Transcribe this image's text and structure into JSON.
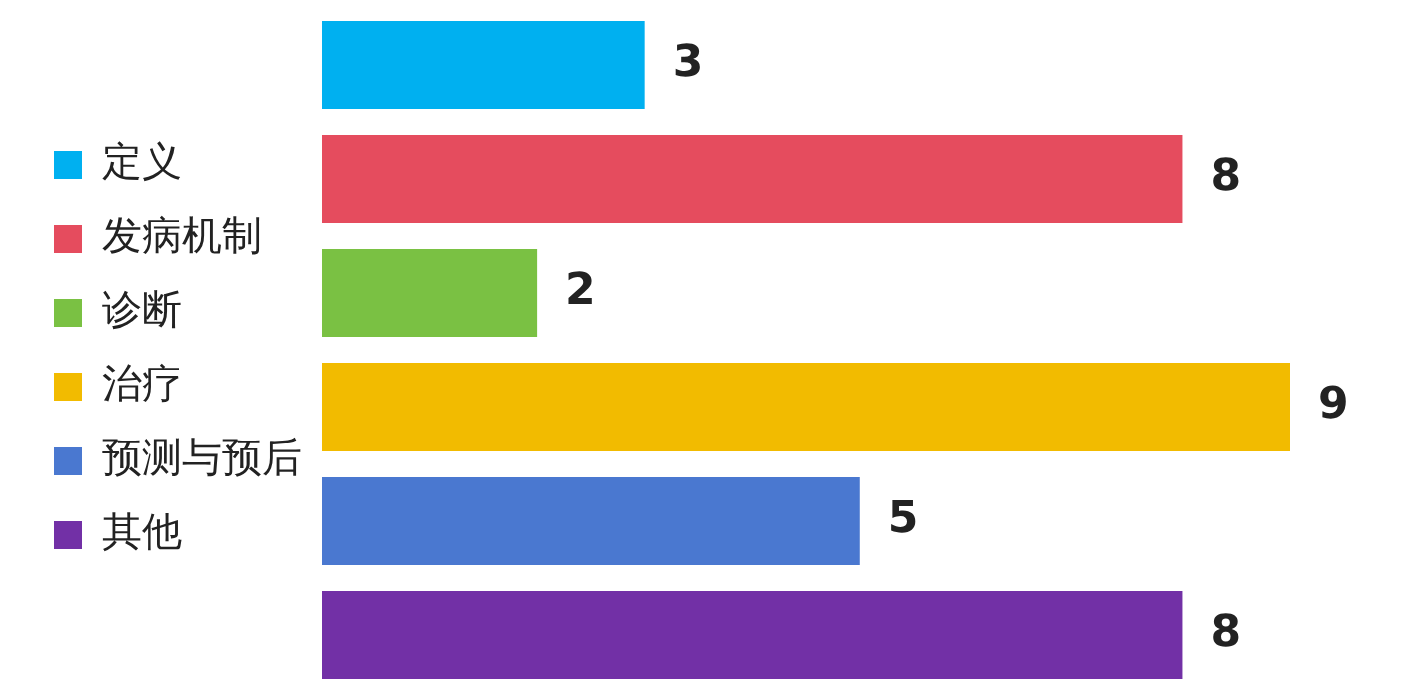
{
  "chart_data": {
    "type": "bar",
    "orientation": "horizontal",
    "stacked": true,
    "data_labels": true,
    "legend": "left",
    "categories": [
      null,
      null,
      null,
      null,
      null,
      null
    ],
    "series": [
      {
        "name": "定义",
        "color": "#00b0f0",
        "values": [
          3,
          null,
          null,
          null,
          null,
          null
        ]
      },
      {
        "name": "发病机制",
        "color": "#e54c5e",
        "values": [
          null,
          8,
          null,
          null,
          null,
          null
        ]
      },
      {
        "name": "诊断",
        "color": "#7ac143",
        "values": [
          null,
          null,
          2,
          null,
          null,
          null
        ]
      },
      {
        "name": "治疗",
        "color": "#f2bb00",
        "values": [
          null,
          null,
          null,
          9,
          null,
          null
        ]
      },
      {
        "name": "预测与预后",
        "color": "#4a78d0",
        "values": [
          null,
          null,
          null,
          null,
          5,
          null
        ]
      },
      {
        "name": "其他",
        "color": "#7230a6",
        "values": [
          null,
          null,
          null,
          null,
          null,
          8
        ]
      }
    ]
  }
}
